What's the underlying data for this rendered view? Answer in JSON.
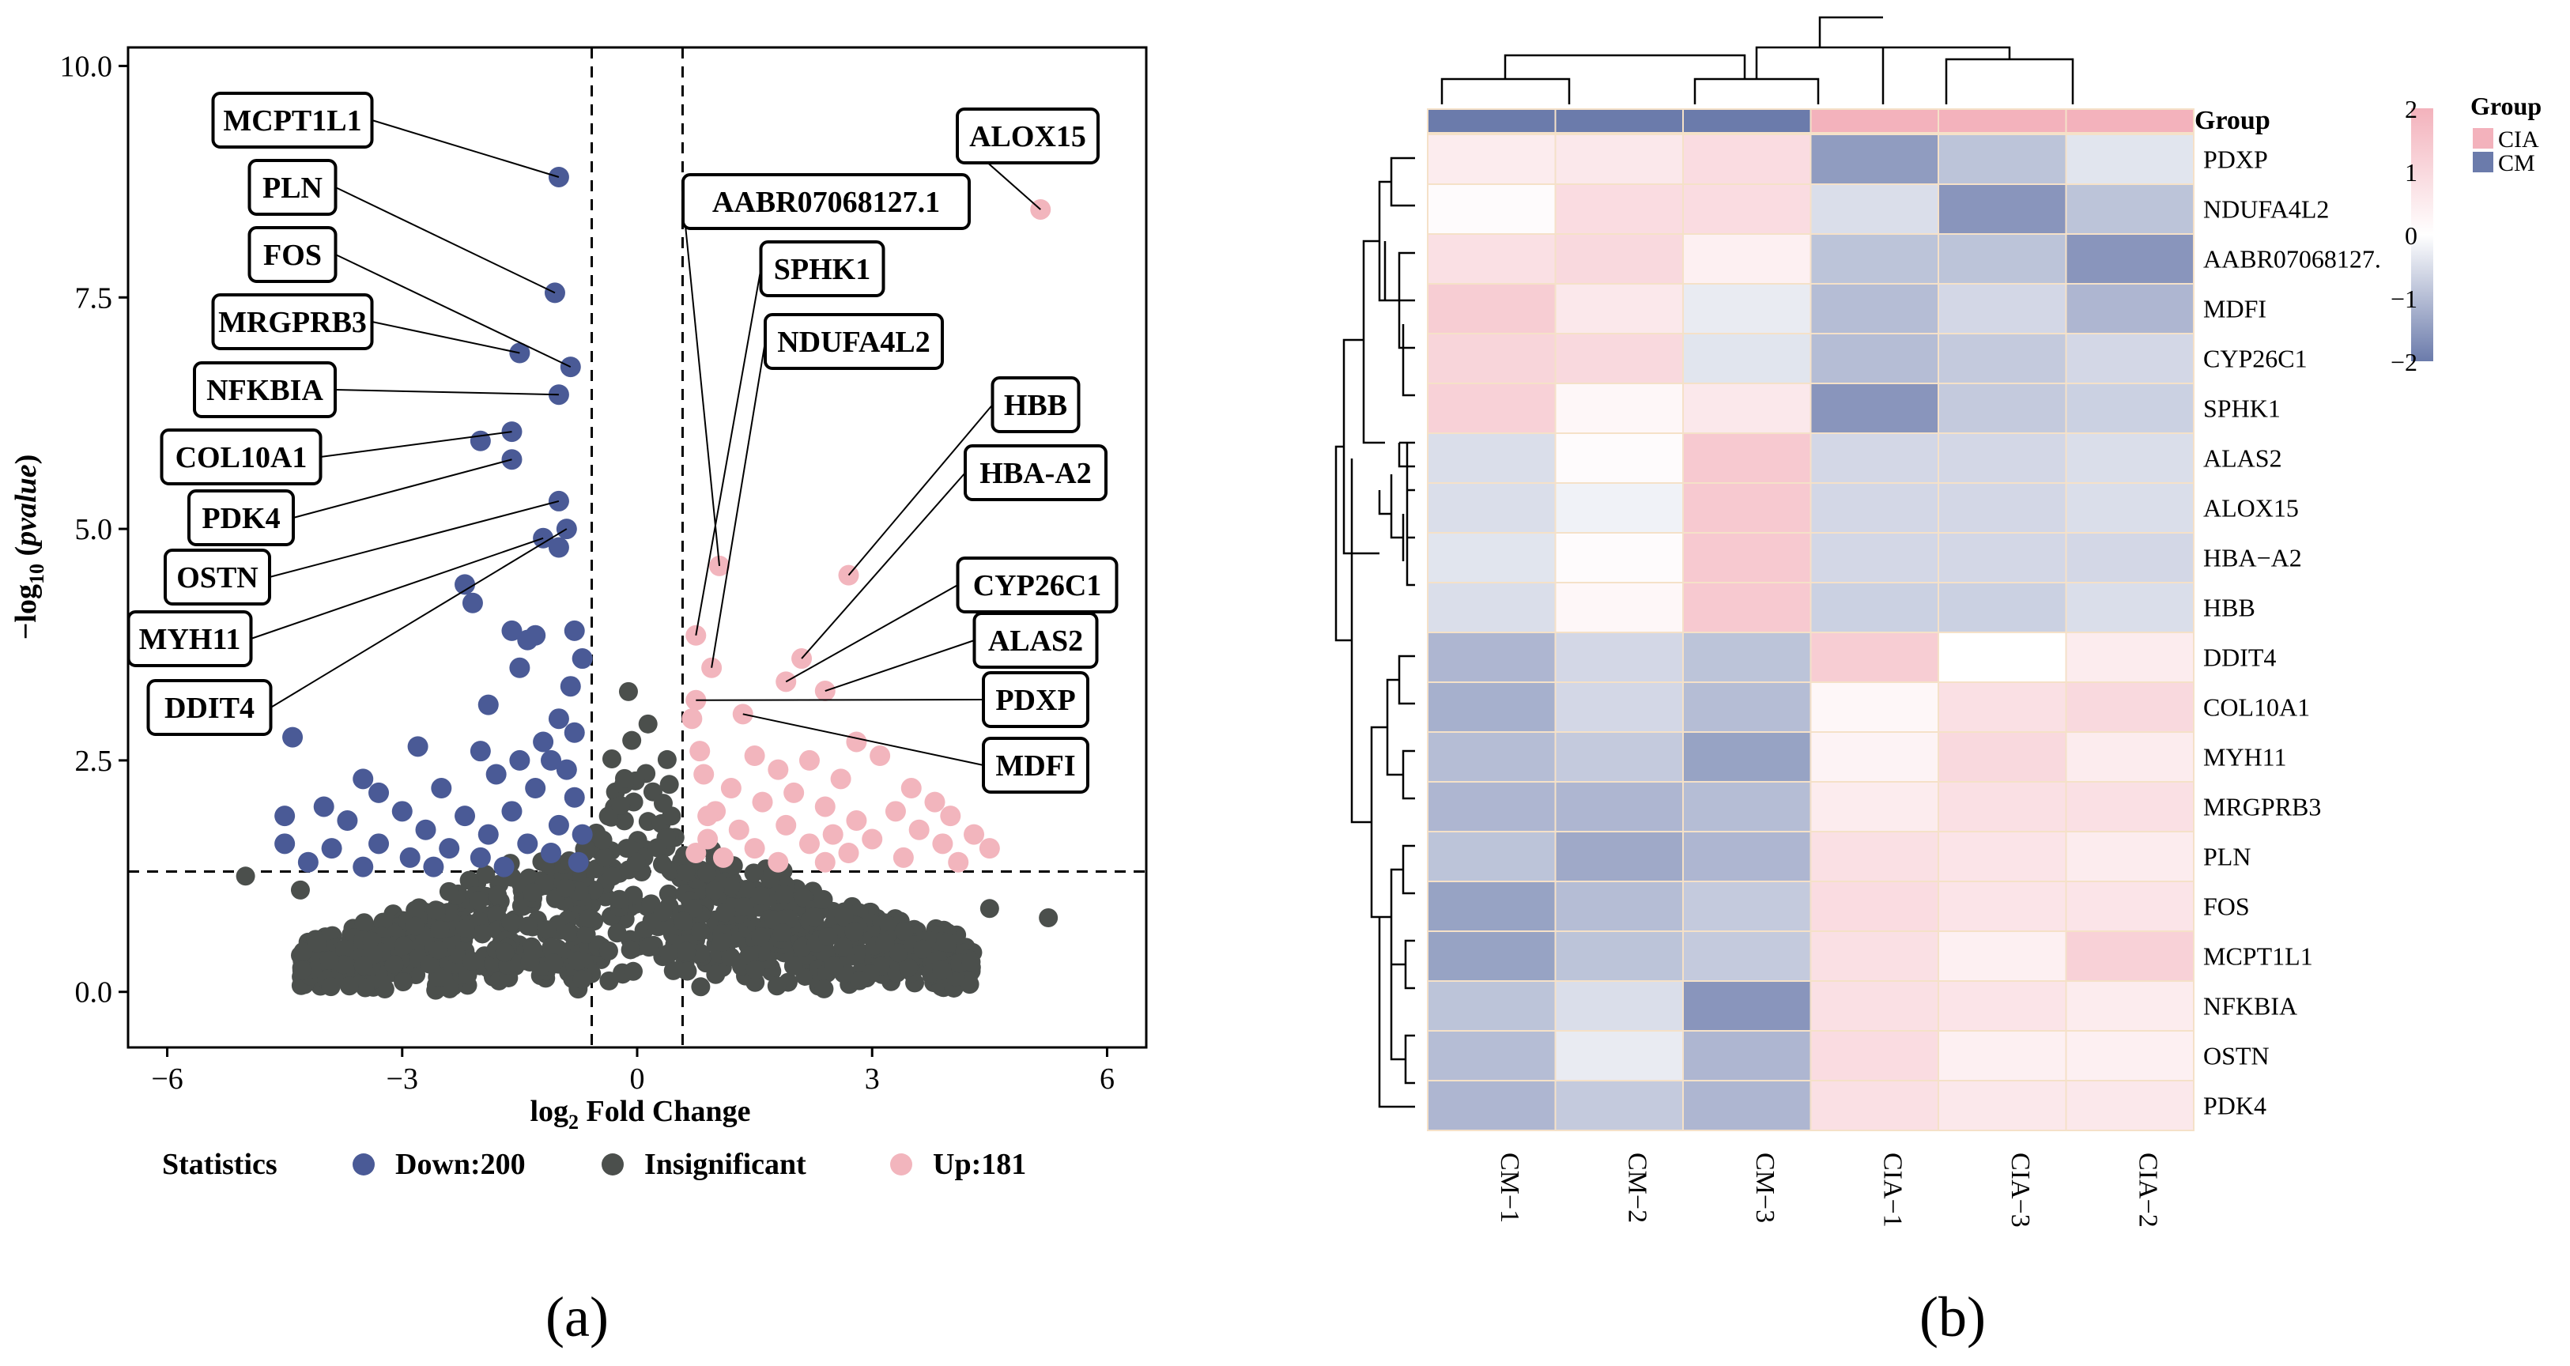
{
  "panel_labels": [
    "(a)",
    "(b)"
  ],
  "chart_data": [
    {
      "type": "scatter",
      "subtype": "volcano",
      "xlabel_prefix": "log",
      "xlabel_sub": "2",
      "xlabel_suffix": "Fold Change",
      "ylabel_prefix": "−log",
      "ylabel_sub": "10",
      "ylabel_open": " (",
      "ylabel_italic": "pvalue",
      "ylabel_close": ")",
      "xlim": [
        -6.5,
        6.5
      ],
      "ylim": [
        -0.6,
        10.2
      ],
      "xticks": [
        -6,
        -3,
        0,
        3,
        6
      ],
      "xtick_labels": [
        "−6",
        "−3",
        "0",
        "3",
        "6"
      ],
      "yticks": [
        0,
        2.5,
        5,
        7.5,
        10
      ],
      "ytick_labels": [
        "0.0",
        "2.5",
        "5.0",
        "7.5",
        "10.0"
      ],
      "thresholds": {
        "log2fc": [
          -0.58,
          0.58
        ],
        "neg_log10_p": 1.3
      },
      "legend": {
        "title": "Statistics",
        "position": "bottom",
        "entries": [
          {
            "label": "Down:200",
            "color": "#4a5a96"
          },
          {
            "label": "Insignificant",
            "color": "#4b4f4c"
          },
          {
            "label": "Up:181",
            "color": "#f2b5bd"
          }
        ]
      },
      "series": [
        {
          "name": "Down",
          "color": "#4a5a96",
          "points": [
            [
              -1.0,
              8.8
            ],
            [
              -1.05,
              7.55
            ],
            [
              -1.5,
              6.9
            ],
            [
              -0.85,
              6.75
            ],
            [
              -1.0,
              6.45
            ],
            [
              -2.0,
              5.95
            ],
            [
              -1.6,
              6.05
            ],
            [
              -1.6,
              5.75
            ],
            [
              -1.0,
              5.3
            ],
            [
              -1.2,
              4.9
            ],
            [
              -0.9,
              5.0
            ],
            [
              -1.0,
              4.8
            ],
            [
              -2.2,
              4.4
            ],
            [
              -2.1,
              4.2
            ],
            [
              -1.6,
              3.9
            ],
            [
              -1.3,
              3.85
            ],
            [
              -1.4,
              3.8
            ],
            [
              -0.8,
              3.9
            ],
            [
              -0.7,
              3.6
            ],
            [
              -1.5,
              3.5
            ],
            [
              -0.85,
              3.3
            ],
            [
              -1.9,
              3.1
            ],
            [
              -1.0,
              2.95
            ],
            [
              -4.4,
              2.75
            ],
            [
              -2.8,
              2.65
            ],
            [
              -2.0,
              2.6
            ],
            [
              -1.2,
              2.7
            ],
            [
              -1.5,
              2.5
            ],
            [
              -1.1,
              2.5
            ],
            [
              -3.5,
              2.3
            ],
            [
              -1.8,
              2.35
            ],
            [
              -0.9,
              2.4
            ],
            [
              -3.3,
              2.15
            ],
            [
              -2.5,
              2.2
            ],
            [
              -1.3,
              2.2
            ],
            [
              -0.8,
              2.1
            ],
            [
              -4.0,
              2.0
            ],
            [
              -3.0,
              1.95
            ],
            [
              -2.2,
              1.9
            ],
            [
              -1.6,
              1.95
            ],
            [
              -4.5,
              1.9
            ],
            [
              -3.7,
              1.85
            ],
            [
              -2.7,
              1.75
            ],
            [
              -1.9,
              1.7
            ],
            [
              -1.0,
              1.8
            ],
            [
              -3.3,
              1.6
            ],
            [
              -2.4,
              1.55
            ],
            [
              -1.4,
              1.6
            ],
            [
              -4.5,
              1.6
            ],
            [
              -3.9,
              1.55
            ],
            [
              -2.9,
              1.45
            ],
            [
              -2.0,
              1.45
            ],
            [
              -1.1,
              1.5
            ],
            [
              -4.2,
              1.4
            ],
            [
              -3.5,
              1.35
            ],
            [
              -2.6,
              1.35
            ],
            [
              -1.7,
              1.35
            ],
            [
              -0.75,
              1.4
            ],
            [
              -0.7,
              1.7
            ],
            [
              -0.8,
              2.8
            ]
          ]
        },
        {
          "name": "Up",
          "color": "#f2b5bd",
          "points": [
            [
              5.15,
              8.45
            ],
            [
              2.7,
              4.5
            ],
            [
              1.05,
              4.6
            ],
            [
              0.75,
              3.85
            ],
            [
              0.95,
              3.5
            ],
            [
              1.9,
              3.35
            ],
            [
              2.1,
              3.6
            ],
            [
              2.4,
              3.25
            ],
            [
              0.75,
              3.15
            ],
            [
              1.35,
              3.0
            ],
            [
              0.7,
              2.95
            ],
            [
              2.8,
              2.7
            ],
            [
              1.5,
              2.55
            ],
            [
              3.1,
              2.55
            ],
            [
              2.2,
              2.5
            ],
            [
              1.8,
              2.4
            ],
            [
              2.6,
              2.3
            ],
            [
              3.5,
              2.2
            ],
            [
              1.2,
              2.2
            ],
            [
              2.0,
              2.15
            ],
            [
              3.8,
              2.05
            ],
            [
              1.6,
              2.05
            ],
            [
              2.4,
              2.0
            ],
            [
              3.3,
              1.95
            ],
            [
              4.0,
              1.9
            ],
            [
              1.0,
              1.95
            ],
            [
              2.8,
              1.85
            ],
            [
              1.9,
              1.8
            ],
            [
              3.6,
              1.75
            ],
            [
              1.3,
              1.75
            ],
            [
              2.5,
              1.7
            ],
            [
              4.3,
              1.7
            ],
            [
              0.9,
              1.65
            ],
            [
              3.0,
              1.65
            ],
            [
              2.2,
              1.6
            ],
            [
              3.9,
              1.6
            ],
            [
              1.5,
              1.55
            ],
            [
              4.5,
              1.55
            ],
            [
              2.7,
              1.5
            ],
            [
              1.1,
              1.45
            ],
            [
              3.4,
              1.45
            ],
            [
              1.8,
              1.4
            ],
            [
              4.1,
              1.4
            ],
            [
              2.4,
              1.4
            ],
            [
              0.75,
              1.5
            ],
            [
              0.8,
              2.6
            ],
            [
              0.85,
              2.35
            ],
            [
              0.9,
              1.9
            ]
          ]
        }
      ],
      "annotations": [
        {
          "label": "MCPT1L1",
          "point": [
            -1.0,
            8.8
          ]
        },
        {
          "label": "PLN",
          "point": [
            -1.05,
            7.55
          ]
        },
        {
          "label": "FOS",
          "point": [
            -0.85,
            6.75
          ]
        },
        {
          "label": "MRGPRB3",
          "point": [
            -1.5,
            6.9
          ]
        },
        {
          "label": "NFKBIA",
          "point": [
            -1.0,
            6.45
          ]
        },
        {
          "label": "COL10A1",
          "point": [
            -1.6,
            6.05
          ]
        },
        {
          "label": "PDK4",
          "point": [
            -1.6,
            5.75
          ]
        },
        {
          "label": "OSTN",
          "point": [
            -1.0,
            5.3
          ]
        },
        {
          "label": "MYH11",
          "point": [
            -1.2,
            4.9
          ]
        },
        {
          "label": "DDIT4",
          "point": [
            -0.9,
            5.0
          ]
        },
        {
          "label": "ALOX15",
          "point": [
            5.15,
            8.45
          ]
        },
        {
          "label": "AABR07068127.1",
          "point": [
            1.05,
            4.6
          ]
        },
        {
          "label": "SPHK1",
          "point": [
            0.75,
            3.85
          ]
        },
        {
          "label": "NDUFA4L2",
          "point": [
            0.95,
            3.5
          ]
        },
        {
          "label": "HBB",
          "point": [
            2.7,
            4.5
          ]
        },
        {
          "label": "HBA-A2",
          "point": [
            2.1,
            3.6
          ]
        },
        {
          "label": "CYP26C1",
          "point": [
            1.9,
            3.35
          ]
        },
        {
          "label": "ALAS2",
          "point": [
            2.4,
            3.25
          ]
        },
        {
          "label": "PDXP",
          "point": [
            0.75,
            3.15
          ]
        },
        {
          "label": "MDFI",
          "point": [
            1.35,
            3.0
          ]
        }
      ]
    },
    {
      "type": "heatmap",
      "columns": [
        "CM−1",
        "CM−2",
        "CM−3",
        "CIA−1",
        "CIA−3",
        "CIA−2"
      ],
      "column_groups": [
        "CM",
        "CM",
        "CM",
        "CIA",
        "CIA",
        "CIA"
      ],
      "group_row_label": "Group",
      "rows": [
        "PDXP",
        "NDUFA4L2",
        "AABR07068127.",
        "MDFI",
        "CYP26C1",
        "SPHK1",
        "ALAS2",
        "ALOX15",
        "HBA−A2",
        "HBB",
        "DDIT4",
        "COL10A1",
        "MYH11",
        "MRGPRB3",
        "PLN",
        "FOS",
        "MCPT1L1",
        "NFKBIA",
        "OSTN",
        "PDK4"
      ],
      "values": [
        [
          0.5,
          0.6,
          0.9,
          -1.5,
          -0.9,
          -0.4
        ],
        [
          0.1,
          0.9,
          0.9,
          -0.5,
          -1.6,
          -0.9
        ],
        [
          0.8,
          1.0,
          0.4,
          -0.9,
          -0.9,
          -1.6
        ],
        [
          1.3,
          0.6,
          -0.3,
          -1.0,
          -0.6,
          -1.1
        ],
        [
          1.1,
          1.0,
          -0.4,
          -1.0,
          -0.8,
          -0.6
        ],
        [
          1.2,
          0.2,
          0.6,
          -1.6,
          -0.8,
          -0.7
        ],
        [
          -0.5,
          0.1,
          1.4,
          -0.6,
          -0.6,
          -0.5
        ],
        [
          -0.5,
          -0.2,
          1.4,
          -0.6,
          -0.6,
          -0.5
        ],
        [
          -0.4,
          0.1,
          1.4,
          -0.6,
          -0.6,
          -0.6
        ],
        [
          -0.5,
          0.2,
          1.4,
          -0.7,
          -0.7,
          -0.5
        ],
        [
          -1.1,
          -0.6,
          -0.9,
          1.3,
          0.0,
          0.5
        ],
        [
          -1.2,
          -0.6,
          -1.0,
          0.2,
          0.8,
          1.0
        ],
        [
          -1.0,
          -0.8,
          -1.4,
          0.3,
          1.0,
          0.5
        ],
        [
          -1.1,
          -1.1,
          -1.0,
          0.5,
          0.8,
          0.8
        ],
        [
          -0.9,
          -1.3,
          -1.1,
          0.8,
          0.7,
          0.5
        ],
        [
          -1.4,
          -1.0,
          -0.8,
          0.9,
          0.7,
          0.7
        ],
        [
          -1.4,
          -0.9,
          -0.8,
          0.8,
          0.4,
          1.2
        ],
        [
          -0.9,
          -0.5,
          -1.6,
          0.8,
          0.7,
          0.5
        ],
        [
          -1.0,
          -0.3,
          -1.1,
          0.9,
          0.4,
          0.4
        ],
        [
          -1.1,
          -0.8,
          -1.1,
          0.8,
          0.6,
          0.6
        ]
      ],
      "color_scale": {
        "min": -2,
        "max": 2,
        "low": "#6b7bab",
        "mid": "#ffffff",
        "high": "#f3b2bc"
      },
      "colorbar_ticks": [
        2,
        1,
        0,
        -1,
        -2
      ],
      "colorbar_tick_labels": [
        "2",
        "1",
        "0",
        "−1",
        "−2"
      ],
      "legend": {
        "title": "Group",
        "entries": [
          {
            "label": "CIA",
            "color": "#f3b2bc"
          },
          {
            "label": "CM",
            "color": "#6b7bab"
          }
        ]
      }
    }
  ]
}
